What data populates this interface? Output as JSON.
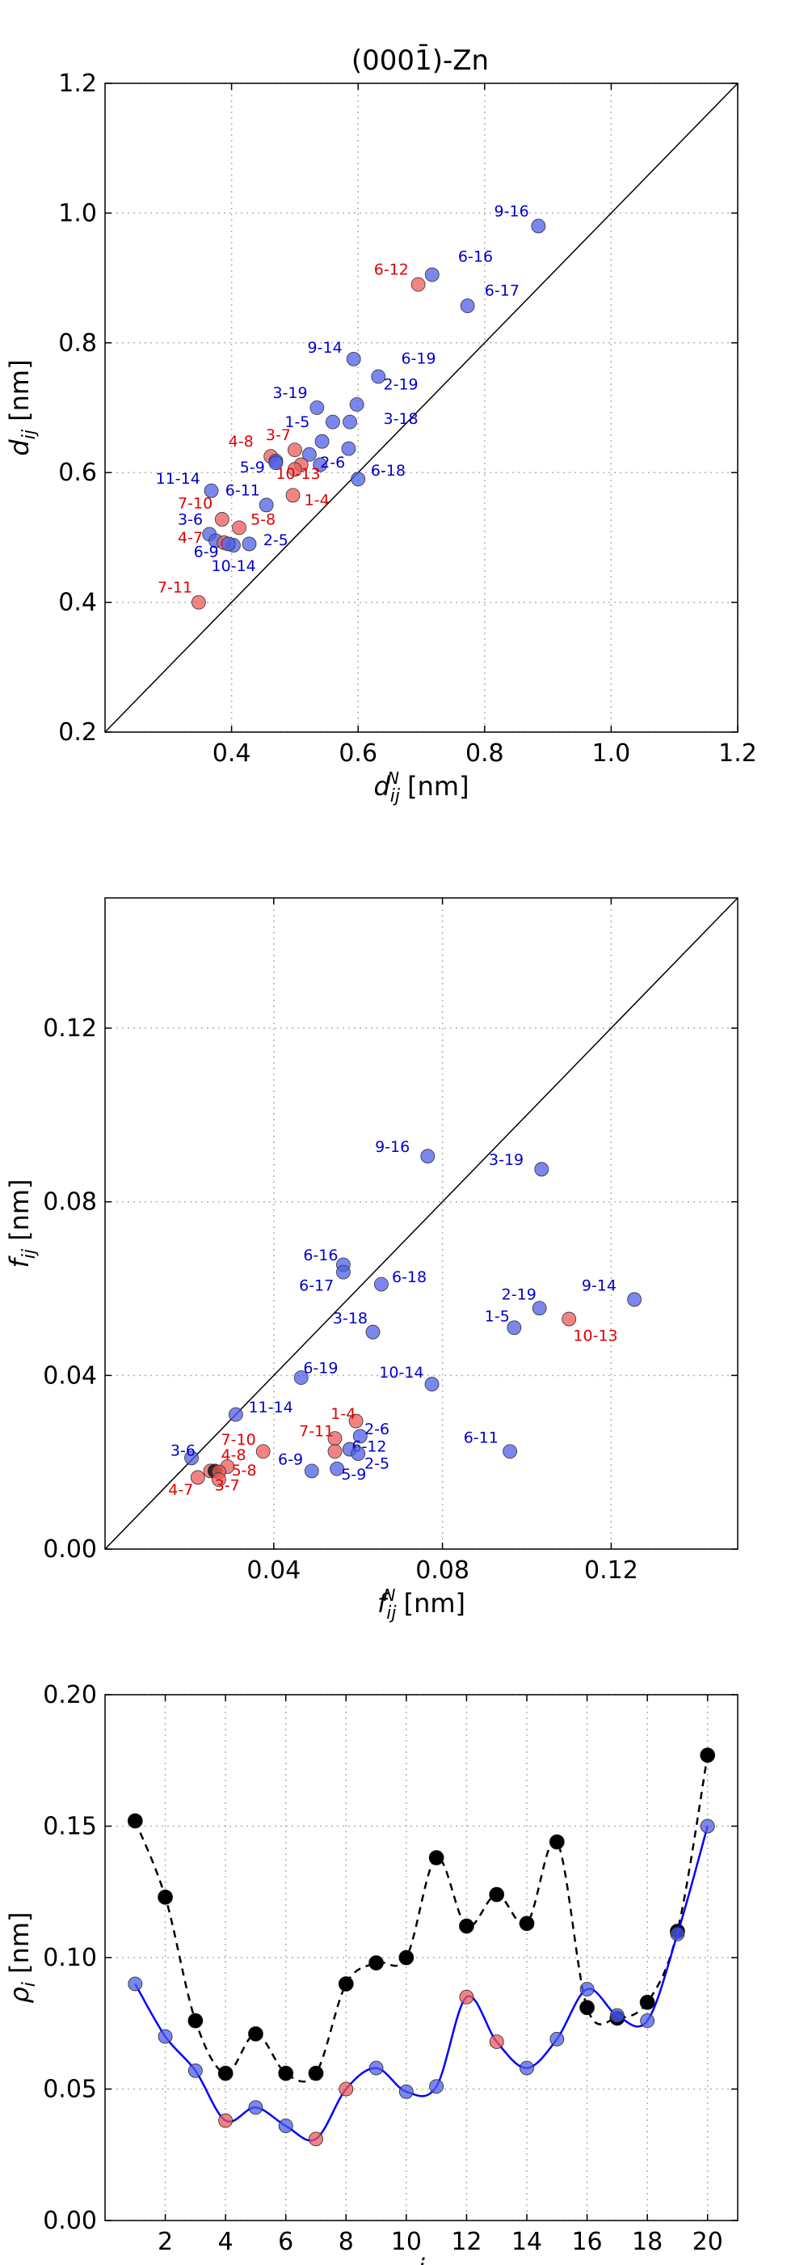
{
  "figure_title": "(0001̄)-Zn",
  "colors": {
    "blue": "#4f5fe8",
    "red": "#ef5a5a",
    "black": "#000000",
    "blue_line": "#0000ff"
  },
  "chart_data": [
    {
      "id": "d",
      "type": "scatter",
      "title": "(0001̄)-Zn",
      "xlabel_main": "d",
      "xlabel_sub": "ij",
      "xlabel_sup": "N",
      "xlabel_unit": "[nm]",
      "ylabel_main": "d",
      "ylabel_sub": "ij",
      "ylabel_unit": "[nm]",
      "xlim": [
        0.2,
        1.2
      ],
      "ylim": [
        0.2,
        1.2
      ],
      "xticks": [
        "0.4",
        "0.6",
        "0.8",
        "1.0",
        "1.2"
      ],
      "yticks": [
        "0.2",
        "0.4",
        "0.6",
        "0.8",
        "1.0",
        "1.2"
      ],
      "diagonal": true,
      "points": [
        {
          "x": 0.885,
          "y": 0.98,
          "c": "blue",
          "label": "9-16",
          "lx": 0.815,
          "ly": 0.995
        },
        {
          "x": 0.717,
          "y": 0.905,
          "c": "blue",
          "label": "6-16",
          "lx": 0.758,
          "ly": 0.925
        },
        {
          "x": 0.695,
          "y": 0.89,
          "c": "red",
          "label": "6-12",
          "lx": 0.625,
          "ly": 0.905
        },
        {
          "x": 0.773,
          "y": 0.857,
          "c": "blue",
          "label": "6-17",
          "lx": 0.8,
          "ly": 0.873
        },
        {
          "x": 0.593,
          "y": 0.775,
          "c": "blue",
          "label": "9-14",
          "lx": 0.52,
          "ly": 0.785
        },
        {
          "x": 0.632,
          "y": 0.748,
          "c": "blue",
          "label": "6-19",
          "lx": 0.668,
          "ly": 0.768
        },
        {
          "x": 0.598,
          "y": 0.705,
          "c": "blue",
          "label": "2-19",
          "lx": 0.64,
          "ly": 0.728
        },
        {
          "x": 0.535,
          "y": 0.7,
          "c": "blue",
          "label": "3-19",
          "lx": 0.465,
          "ly": 0.715
        },
        {
          "x": 0.56,
          "y": 0.678,
          "c": "blue",
          "label": "1-5",
          "lx": 0.484,
          "ly": 0.67
        },
        {
          "x": 0.587,
          "y": 0.678,
          "c": "blue",
          "label": "3-18",
          "lx": 0.64,
          "ly": 0.675
        },
        {
          "x": 0.543,
          "y": 0.648,
          "c": "blue",
          "label": "",
          "lx": 0,
          "ly": 0
        },
        {
          "x": 0.585,
          "y": 0.637,
          "c": "blue",
          "label": "",
          "lx": 0,
          "ly": 0
        },
        {
          "x": 0.523,
          "y": 0.628,
          "c": "blue",
          "label": "",
          "lx": 0,
          "ly": 0
        },
        {
          "x": 0.5,
          "y": 0.635,
          "c": "red",
          "label": "3-7",
          "lx": 0.454,
          "ly": 0.65
        },
        {
          "x": 0.462,
          "y": 0.625,
          "c": "red",
          "label": "4-8",
          "lx": 0.395,
          "ly": 0.64
        },
        {
          "x": 0.47,
          "y": 0.618,
          "c": "blue",
          "label": "",
          "lx": 0,
          "ly": 0
        },
        {
          "x": 0.51,
          "y": 0.612,
          "c": "red",
          "label": "",
          "lx": 0,
          "ly": 0
        },
        {
          "x": 0.54,
          "y": 0.612,
          "c": "blue",
          "label": "2-6",
          "lx": 0.54,
          "ly": 0.608
        },
        {
          "x": 0.6,
          "y": 0.59,
          "c": "blue",
          "label": "6-18",
          "lx": 0.62,
          "ly": 0.595
        },
        {
          "x": 0.47,
          "y": 0.615,
          "c": "blue",
          "label": "5-9",
          "lx": 0.413,
          "ly": 0.6
        },
        {
          "x": 0.5,
          "y": 0.605,
          "c": "red",
          "label": "10-13",
          "lx": 0.47,
          "ly": 0.59
        },
        {
          "x": 0.368,
          "y": 0.572,
          "c": "blue",
          "label": "11-14",
          "lx": 0.28,
          "ly": 0.583
        },
        {
          "x": 0.455,
          "y": 0.55,
          "c": "blue",
          "label": "6-11",
          "lx": 0.39,
          "ly": 0.565
        },
        {
          "x": 0.497,
          "y": 0.565,
          "c": "red",
          "label": "1-4",
          "lx": 0.515,
          "ly": 0.55
        },
        {
          "x": 0.385,
          "y": 0.528,
          "c": "red",
          "label": "7-10",
          "lx": 0.315,
          "ly": 0.545
        },
        {
          "x": 0.412,
          "y": 0.515,
          "c": "red",
          "label": "5-8",
          "lx": 0.43,
          "ly": 0.52
        },
        {
          "x": 0.365,
          "y": 0.505,
          "c": "blue",
          "label": "3-6",
          "lx": 0.315,
          "ly": 0.52
        },
        {
          "x": 0.375,
          "y": 0.495,
          "c": "blue",
          "label": "",
          "lx": 0,
          "ly": 0
        },
        {
          "x": 0.388,
          "y": 0.492,
          "c": "red",
          "label": "4-7",
          "lx": 0.315,
          "ly": 0.492
        },
        {
          "x": 0.403,
          "y": 0.488,
          "c": "blue",
          "label": "6-9",
          "lx": 0.34,
          "ly": 0.47
        },
        {
          "x": 0.428,
          "y": 0.49,
          "c": "blue",
          "label": "2-5",
          "lx": 0.45,
          "ly": 0.488
        },
        {
          "x": 0.395,
          "y": 0.49,
          "c": "blue",
          "label": "10-14",
          "lx": 0.368,
          "ly": 0.448
        },
        {
          "x": 0.348,
          "y": 0.4,
          "c": "red",
          "label": "7-11",
          "lx": 0.283,
          "ly": 0.415
        }
      ]
    },
    {
      "id": "f",
      "type": "scatter",
      "xlabel_main": "f",
      "xlabel_sub": "ij",
      "xlabel_sup": "N",
      "xlabel_unit": "[nm]",
      "ylabel_main": "f",
      "ylabel_sub": "ij",
      "ylabel_unit": "[nm]",
      "xlim": [
        0.0,
        0.15
      ],
      "ylim": [
        0.0,
        0.15
      ],
      "xticks": [
        "0.04",
        "0.08",
        "0.12"
      ],
      "yticks": [
        "0.00",
        "0.04",
        "0.08",
        "0.12"
      ],
      "diagonal": true,
      "points": [
        {
          "x": 0.0765,
          "y": 0.0905,
          "c": "blue",
          "label": "9-16",
          "lx": 0.064,
          "ly": 0.0915
        },
        {
          "x": 0.1035,
          "y": 0.0875,
          "c": "blue",
          "label": "3-19",
          "lx": 0.091,
          "ly": 0.0885
        },
        {
          "x": 0.0565,
          "y": 0.0655,
          "c": "blue",
          "label": "6-16",
          "lx": 0.047,
          "ly": 0.0665
        },
        {
          "x": 0.0565,
          "y": 0.0638,
          "c": "blue",
          "label": "6-17",
          "lx": 0.046,
          "ly": 0.0595
        },
        {
          "x": 0.0655,
          "y": 0.061,
          "c": "blue",
          "label": "6-18",
          "lx": 0.068,
          "ly": 0.0615
        },
        {
          "x": 0.1255,
          "y": 0.0575,
          "c": "blue",
          "label": "9-14",
          "lx": 0.113,
          "ly": 0.0595
        },
        {
          "x": 0.103,
          "y": 0.0555,
          "c": "blue",
          "label": "2-19",
          "lx": 0.094,
          "ly": 0.0575
        },
        {
          "x": 0.097,
          "y": 0.051,
          "c": "blue",
          "label": "1-5",
          "lx": 0.09,
          "ly": 0.0525
        },
        {
          "x": 0.11,
          "y": 0.053,
          "c": "red",
          "label": "10-13",
          "lx": 0.111,
          "ly": 0.048
        },
        {
          "x": 0.0635,
          "y": 0.05,
          "c": "blue",
          "label": "3-18",
          "lx": 0.054,
          "ly": 0.052
        },
        {
          "x": 0.0465,
          "y": 0.0395,
          "c": "blue",
          "label": "6-19",
          "lx": 0.047,
          "ly": 0.0405
        },
        {
          "x": 0.0775,
          "y": 0.038,
          "c": "blue",
          "label": "10-14",
          "lx": 0.065,
          "ly": 0.0395
        },
        {
          "x": 0.031,
          "y": 0.031,
          "c": "blue",
          "label": "11-14",
          "lx": 0.034,
          "ly": 0.0315
        },
        {
          "x": 0.0595,
          "y": 0.0295,
          "c": "red",
          "label": "1-4",
          "lx": 0.0535,
          "ly": 0.03
        },
        {
          "x": 0.0605,
          "y": 0.026,
          "c": "blue",
          "label": "2-6",
          "lx": 0.0615,
          "ly": 0.0265
        },
        {
          "x": 0.0545,
          "y": 0.0255,
          "c": "red",
          "label": "7-11",
          "lx": 0.046,
          "ly": 0.026
        },
        {
          "x": 0.058,
          "y": 0.023,
          "c": "blue",
          "label": "6-12",
          "lx": 0.0585,
          "ly": 0.0225
        },
        {
          "x": 0.0545,
          "y": 0.0225,
          "c": "red",
          "label": "",
          "lx": 0,
          "ly": 0
        },
        {
          "x": 0.06,
          "y": 0.022,
          "c": "blue",
          "label": "2-5",
          "lx": 0.0615,
          "ly": 0.0185
        },
        {
          "x": 0.096,
          "y": 0.0225,
          "c": "blue",
          "label": "6-11",
          "lx": 0.085,
          "ly": 0.0245
        },
        {
          "x": 0.0375,
          "y": 0.0225,
          "c": "red",
          "label": "7-10",
          "lx": 0.0275,
          "ly": 0.024
        },
        {
          "x": 0.0205,
          "y": 0.021,
          "c": "blue",
          "label": "3-6",
          "lx": 0.0155,
          "ly": 0.0215
        },
        {
          "x": 0.029,
          "y": 0.019,
          "c": "red",
          "label": "4-8",
          "lx": 0.0275,
          "ly": 0.0205
        },
        {
          "x": 0.049,
          "y": 0.018,
          "c": "blue",
          "label": "6-9",
          "lx": 0.041,
          "ly": 0.0195
        },
        {
          "x": 0.055,
          "y": 0.0185,
          "c": "blue",
          "label": "5-9",
          "lx": 0.056,
          "ly": 0.016
        },
        {
          "x": 0.025,
          "y": 0.018,
          "c": "red",
          "label": "5-8",
          "lx": 0.03,
          "ly": 0.017
        },
        {
          "x": 0.026,
          "y": 0.018,
          "c": "black",
          "label": "",
          "lx": 0,
          "ly": 0
        },
        {
          "x": 0.027,
          "y": 0.0178,
          "c": "red",
          "label": "",
          "lx": 0,
          "ly": 0
        },
        {
          "x": 0.022,
          "y": 0.0165,
          "c": "red",
          "label": "4-7",
          "lx": 0.015,
          "ly": 0.0125
        },
        {
          "x": 0.027,
          "y": 0.016,
          "c": "red",
          "label": "3-7",
          "lx": 0.026,
          "ly": 0.0135
        }
      ]
    },
    {
      "id": "rho",
      "type": "line",
      "xlabel_main": "i",
      "ylabel_main": "ρ",
      "ylabel_sub": "i",
      "ylabel_unit": "[nm]",
      "xlim": [
        0,
        21
      ],
      "ylim": [
        0.0,
        0.2
      ],
      "xticks": [
        "2",
        "4",
        "6",
        "8",
        "10",
        "12",
        "14",
        "16",
        "18",
        "20"
      ],
      "yticks": [
        "0.00",
        "0.05",
        "0.10",
        "0.15",
        "0.20"
      ],
      "x": [
        1,
        2,
        3,
        4,
        5,
        6,
        7,
        8,
        9,
        10,
        11,
        12,
        13,
        14,
        15,
        16,
        17,
        18,
        19,
        20
      ],
      "series": [
        {
          "name": "black-dashed",
          "style": "dashed",
          "values": [
            0.152,
            0.123,
            0.076,
            0.056,
            0.071,
            0.056,
            0.056,
            0.09,
            0.098,
            0.1,
            0.138,
            0.112,
            0.124,
            0.113,
            0.144,
            0.081,
            0.077,
            0.083,
            0.11,
            0.177
          ],
          "colors": [
            "black",
            "black",
            "black",
            "black",
            "black",
            "black",
            "black",
            "black",
            "black",
            "black",
            "black",
            "black",
            "black",
            "black",
            "black",
            "black",
            "black",
            "black",
            "black",
            "black"
          ]
        },
        {
          "name": "blue-solid",
          "style": "solid",
          "values": [
            0.09,
            0.07,
            0.057,
            0.038,
            0.043,
            0.036,
            0.031,
            0.05,
            0.058,
            0.049,
            0.051,
            0.085,
            0.068,
            0.058,
            0.069,
            0.088,
            0.078,
            0.076,
            0.109,
            0.15
          ],
          "colors": [
            "blue",
            "blue",
            "blue",
            "red",
            "blue",
            "blue",
            "red",
            "red",
            "blue",
            "blue",
            "blue",
            "red",
            "red",
            "blue",
            "blue",
            "blue",
            "blue",
            "blue",
            "blue",
            "blue"
          ]
        }
      ]
    }
  ]
}
